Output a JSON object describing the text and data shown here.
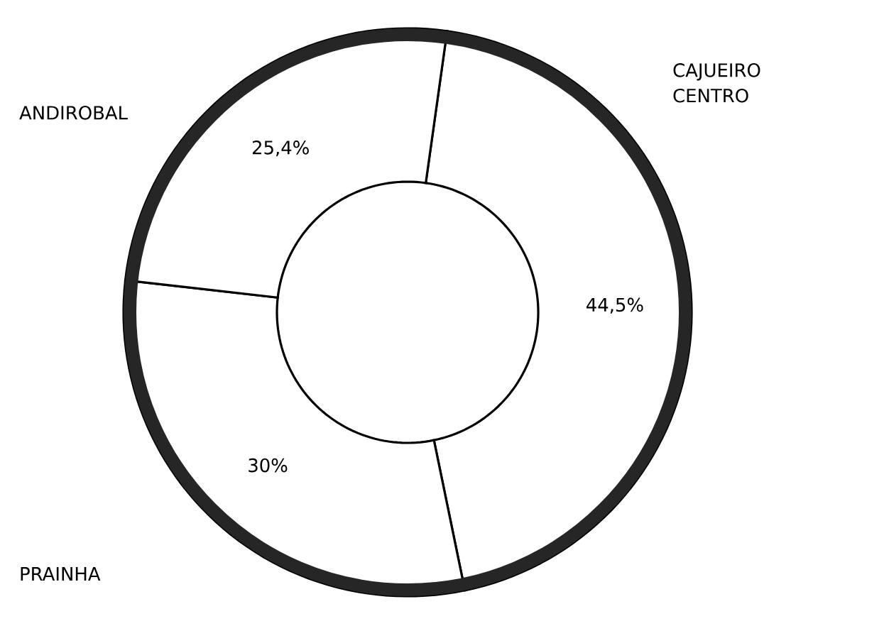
{
  "chart_data": {
    "type": "donut",
    "categories": [
      "CAJUEIRO CENTRO",
      "PRAINHA",
      "ANDIROBAL"
    ],
    "values": [
      44.5,
      30,
      25.4
    ],
    "value_labels": [
      "44,5%",
      "30%",
      "25,4%"
    ],
    "colors": [
      "#ffffff",
      "#ffffff",
      "#ffffff"
    ]
  }
}
